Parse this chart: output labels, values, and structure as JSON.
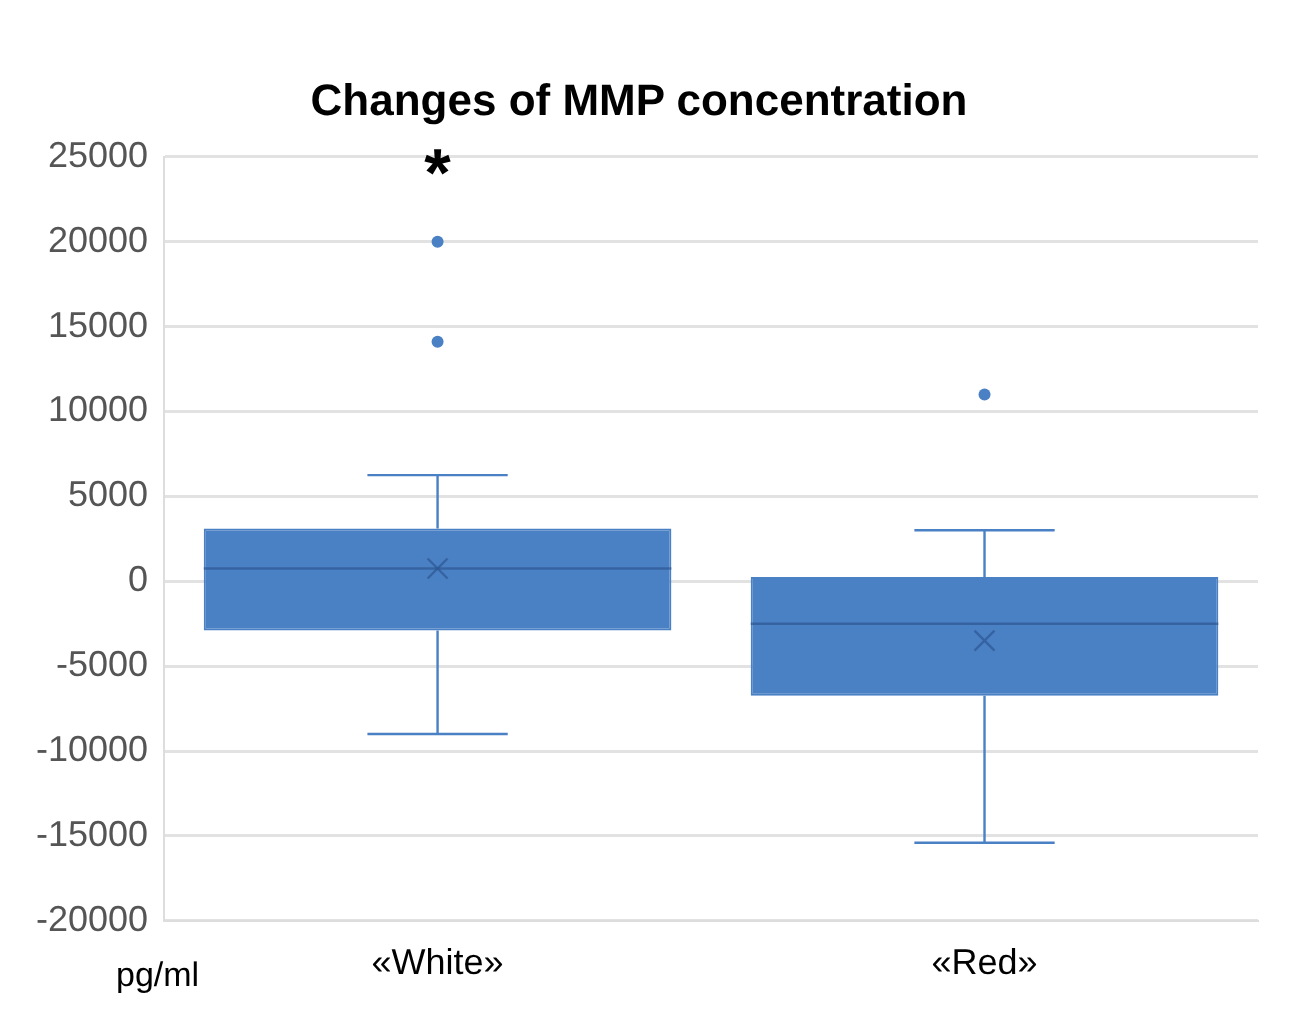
{
  "chart_data": {
    "type": "box",
    "title": "Changes of MMP concentration",
    "ylabel": "pg/ml",
    "categories": [
      "«White»",
      "«Red»"
    ],
    "boxes": [
      {
        "low": -9000,
        "q1": -2900,
        "median": 750,
        "q3": 3100,
        "high": 6250,
        "mean": 750,
        "outliers": [
          14100,
          20000
        ]
      },
      {
        "low": -15400,
        "q1": -6750,
        "median": -2500,
        "q3": 250,
        "high": 3000,
        "mean": -3500,
        "outliers": [
          11000
        ]
      }
    ],
    "color": "#4a80c4",
    "ylim": [
      -20000,
      25000
    ],
    "yticks": [
      -20000,
      -15000,
      -10000,
      -5000,
      0,
      5000,
      10000,
      15000,
      20000,
      25000
    ],
    "grid": "y",
    "legend": false,
    "annotations": [
      "*"
    ]
  }
}
